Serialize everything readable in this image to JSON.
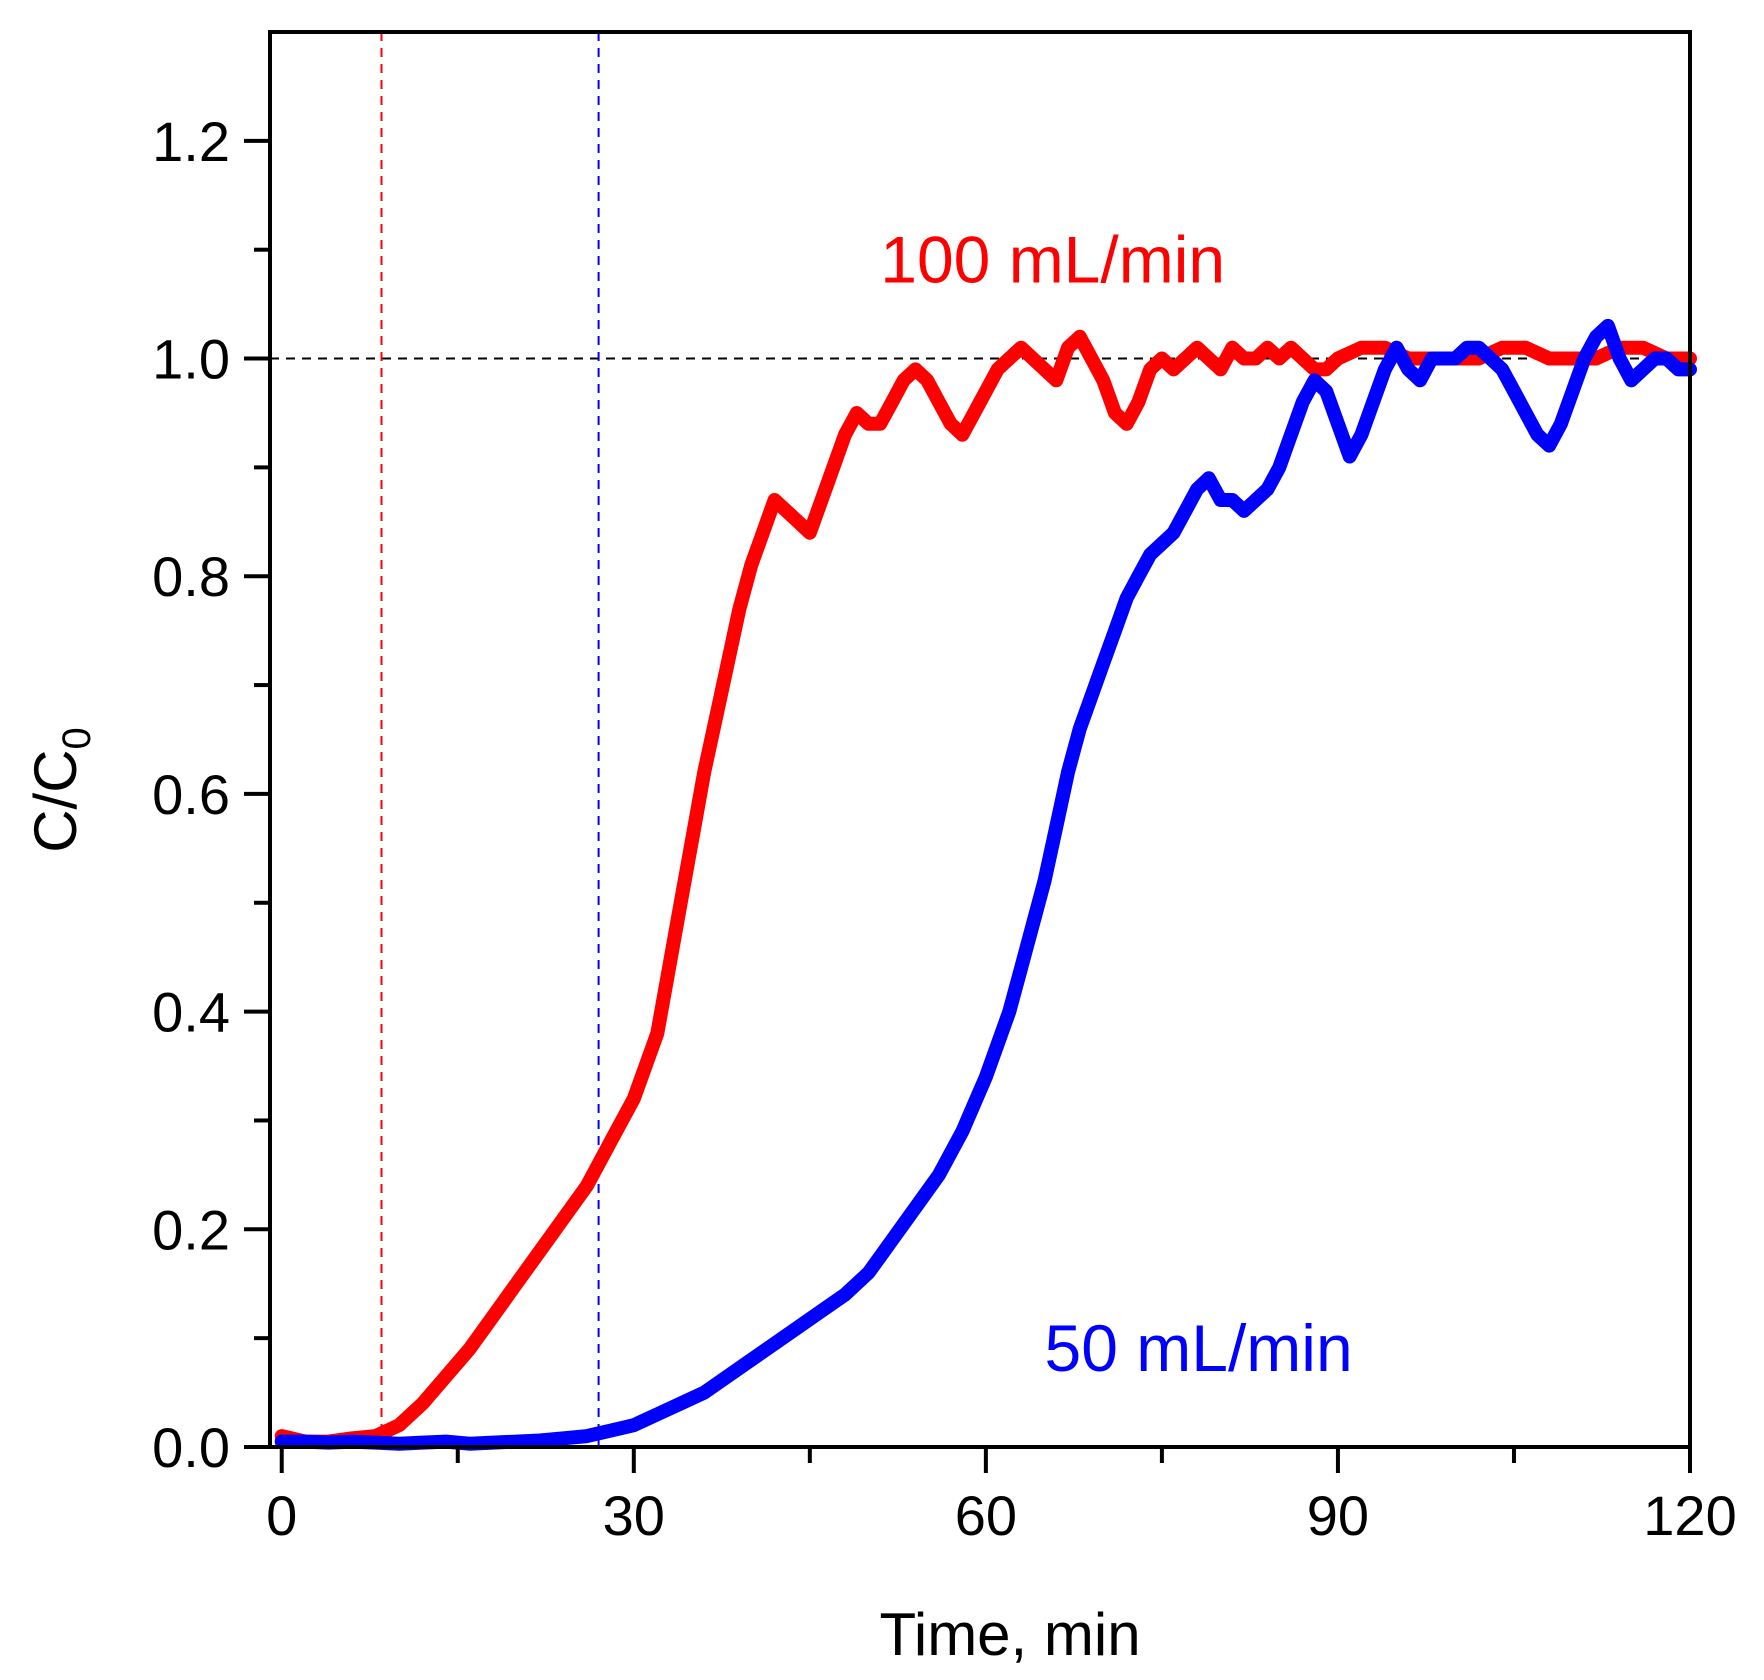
{
  "chart_data": {
    "type": "line",
    "title": "",
    "xlabel": "Time, min",
    "ylabel": {
      "main": "C/C",
      "sub": "0"
    },
    "xlim": [
      -1,
      120
    ],
    "ylim": [
      0,
      1.3
    ],
    "xticks": [
      0,
      30,
      60,
      90,
      120
    ],
    "xtick_labels": [
      "0",
      "30",
      "60",
      "90",
      "120"
    ],
    "yticks": [
      0.0,
      0.2,
      0.4,
      0.6,
      0.8,
      1.0,
      1.2
    ],
    "ytick_labels": [
      "0.0",
      "0.2",
      "0.4",
      "0.6",
      "0.8",
      "1.0",
      "1.2"
    ],
    "grid": false,
    "reference_lines": [
      {
        "orientation": "horizontal",
        "value": 1.0,
        "color": "#000000",
        "style": "dashed"
      },
      {
        "orientation": "vertical",
        "value": 8.5,
        "color": "#ff0000",
        "style": "dashed"
      },
      {
        "orientation": "vertical",
        "value": 27,
        "color": "#0000ff",
        "style": "dashed"
      }
    ],
    "series": [
      {
        "name": "100 mL/min",
        "label": "100 mL/min",
        "label_at": [
          51,
          1.07
        ],
        "color": "#ff0000",
        "x": [
          0,
          2,
          4,
          6,
          8,
          10,
          12,
          14,
          16,
          18,
          20,
          22,
          24,
          26,
          28,
          30,
          32,
          33,
          34,
          35,
          36,
          37,
          38,
          39,
          40,
          41,
          42,
          43,
          44,
          45,
          46,
          47,
          48,
          49,
          50,
          51,
          52,
          53,
          54,
          55,
          56,
          57,
          58,
          59,
          60,
          61,
          62,
          63,
          64,
          65,
          66,
          67,
          68,
          69,
          70,
          71,
          72,
          73,
          74,
          75,
          76,
          77,
          78,
          79,
          80,
          81,
          82,
          83,
          84,
          85,
          86,
          87,
          88,
          89,
          90,
          92,
          94,
          96,
          98,
          100,
          102,
          104,
          106,
          108,
          110,
          112,
          114,
          116,
          118,
          120
        ],
        "y": [
          0.01,
          0.005,
          0.005,
          0.008,
          0.01,
          0.02,
          0.04,
          0.065,
          0.09,
          0.12,
          0.15,
          0.18,
          0.21,
          0.24,
          0.28,
          0.32,
          0.38,
          0.44,
          0.5,
          0.56,
          0.62,
          0.67,
          0.72,
          0.77,
          0.81,
          0.84,
          0.87,
          0.86,
          0.85,
          0.84,
          0.87,
          0.9,
          0.93,
          0.95,
          0.94,
          0.94,
          0.96,
          0.98,
          0.99,
          0.98,
          0.96,
          0.94,
          0.93,
          0.95,
          0.97,
          0.99,
          1.0,
          1.01,
          1.0,
          0.99,
          0.98,
          1.01,
          1.02,
          1.0,
          0.98,
          0.95,
          0.94,
          0.96,
          0.99,
          1.0,
          0.99,
          1.0,
          1.01,
          1.0,
          0.99,
          1.01,
          1.0,
          1.0,
          1.01,
          1.0,
          1.01,
          1.0,
          0.99,
          0.99,
          1.0,
          1.01,
          1.01,
          1.0,
          1.0,
          1.0,
          1.0,
          1.01,
          1.01,
          1.0,
          1.0,
          1.0,
          1.01,
          1.01,
          1.0,
          1.0
        ]
      },
      {
        "name": "50 mL/min",
        "label": "50 mL/min",
        "label_at": [
          65,
          0.07
        ],
        "color": "#0000ff",
        "x": [
          0,
          2,
          4,
          6,
          8,
          10,
          12,
          14,
          16,
          18,
          20,
          22,
          24,
          26,
          28,
          30,
          32,
          34,
          36,
          38,
          40,
          42,
          44,
          46,
          48,
          50,
          52,
          54,
          56,
          58,
          60,
          61,
          62,
          63,
          64,
          65,
          66,
          67,
          68,
          69,
          70,
          71,
          72,
          73,
          74,
          75,
          76,
          77,
          78,
          79,
          80,
          81,
          82,
          83,
          84,
          85,
          86,
          87,
          88,
          89,
          90,
          91,
          92,
          93,
          94,
          95,
          96,
          97,
          98,
          99,
          100,
          101,
          102,
          103,
          104,
          105,
          106,
          107,
          108,
          109,
          110,
          111,
          112,
          113,
          114,
          115,
          116,
          117,
          118,
          119,
          120
        ],
        "y": [
          0.005,
          0.005,
          0.004,
          0.005,
          0.004,
          0.003,
          0.004,
          0.005,
          0.003,
          0.004,
          0.005,
          0.006,
          0.008,
          0.01,
          0.015,
          0.02,
          0.03,
          0.04,
          0.05,
          0.065,
          0.08,
          0.095,
          0.11,
          0.125,
          0.14,
          0.16,
          0.19,
          0.22,
          0.25,
          0.29,
          0.34,
          0.37,
          0.4,
          0.44,
          0.48,
          0.52,
          0.57,
          0.62,
          0.66,
          0.69,
          0.72,
          0.75,
          0.78,
          0.8,
          0.82,
          0.83,
          0.84,
          0.86,
          0.88,
          0.89,
          0.87,
          0.87,
          0.86,
          0.87,
          0.88,
          0.9,
          0.93,
          0.96,
          0.98,
          0.97,
          0.94,
          0.91,
          0.93,
          0.96,
          0.99,
          1.01,
          0.99,
          0.98,
          1.0,
          1.0,
          1.0,
          1.01,
          1.01,
          1.0,
          0.99,
          0.97,
          0.95,
          0.93,
          0.92,
          0.94,
          0.97,
          1.0,
          1.02,
          1.03,
          1.0,
          0.98,
          0.99,
          1.0,
          1.0,
          0.99,
          0.99
        ]
      }
    ]
  }
}
